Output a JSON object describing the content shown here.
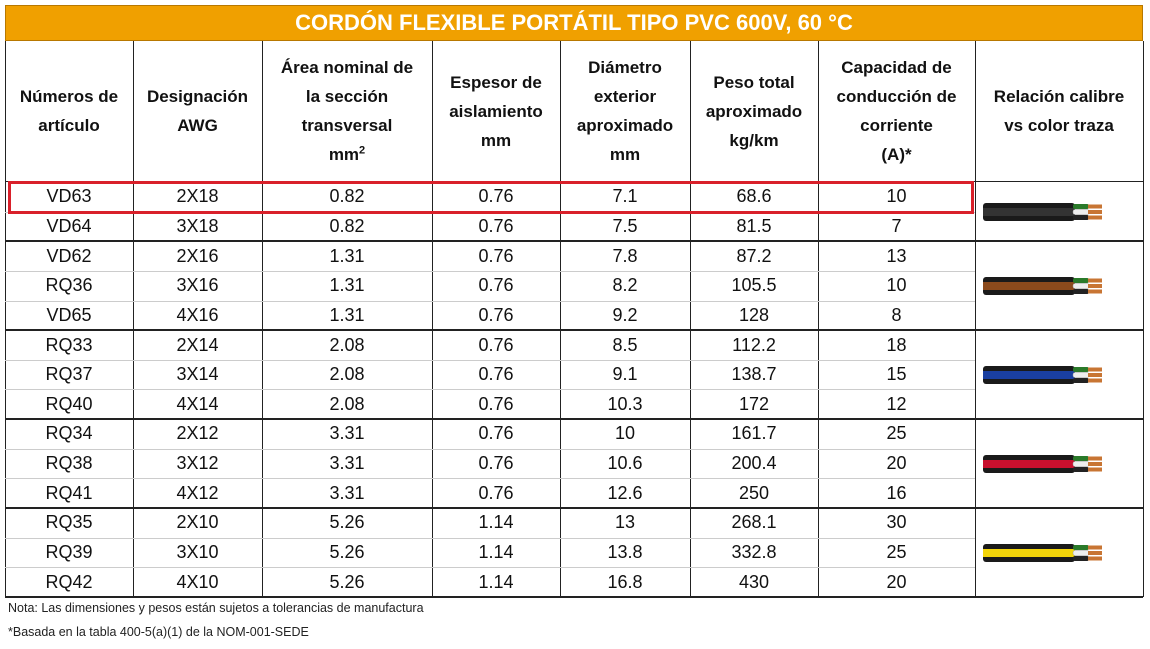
{
  "title": "CORDÓN FLEXIBLE PORTÁTIL TIPO PVC 600V, 60 °C",
  "table": {
    "headers": [
      [
        "Números de",
        "artículo"
      ],
      [
        "Designación",
        "AWG"
      ],
      [
        "Área nominal de",
        "la sección",
        "transversal",
        "mm"
      ],
      [
        "Espesor de",
        "aislamiento",
        "mm"
      ],
      [
        "Diámetro",
        "exterior",
        "aproximado",
        "mm"
      ],
      [
        "Peso total",
        "aproximado",
        "kg/km"
      ],
      [
        "Capacidad de",
        "conducción de",
        "corriente",
        "(A)*"
      ],
      [
        "Relación calibre",
        "vs color traza"
      ]
    ],
    "area_unit_superscript": "2",
    "rows": [
      [
        "VD63",
        "2X18",
        "0.82",
        "0.76",
        "7.1",
        "68.6",
        "10"
      ],
      [
        "VD64",
        "3X18",
        "0.82",
        "0.76",
        "7.5",
        "81.5",
        "7"
      ],
      [
        "VD62",
        "2X16",
        "1.31",
        "0.76",
        "7.8",
        "87.2",
        "13"
      ],
      [
        "RQ36",
        "3X16",
        "1.31",
        "0.76",
        "8.2",
        "105.5",
        "10"
      ],
      [
        "VD65",
        "4X16",
        "1.31",
        "0.76",
        "9.2",
        "128",
        "8"
      ],
      [
        "RQ33",
        "2X14",
        "2.08",
        "0.76",
        "8.5",
        "112.2",
        "18"
      ],
      [
        "RQ37",
        "3X14",
        "2.08",
        "0.76",
        "9.1",
        "138.7",
        "15"
      ],
      [
        "RQ40",
        "4X14",
        "2.08",
        "0.76",
        "10.3",
        "172",
        "12"
      ],
      [
        "RQ34",
        "2X12",
        "3.31",
        "0.76",
        "10",
        "161.7",
        "25"
      ],
      [
        "RQ38",
        "3X12",
        "3.31",
        "0.76",
        "10.6",
        "200.4",
        "20"
      ],
      [
        "RQ41",
        "4X12",
        "3.31",
        "0.76",
        "12.6",
        "250",
        "16"
      ],
      [
        "RQ35",
        "2X10",
        "5.26",
        "1.14",
        "13",
        "268.1",
        "30"
      ],
      [
        "RQ39",
        "3X10",
        "5.26",
        "1.14",
        "13.8",
        "332.8",
        "25"
      ],
      [
        "RQ42",
        "4X10",
        "5.26",
        "1.14",
        "16.8",
        "430",
        "20"
      ]
    ],
    "cable_colors": [
      "#333333",
      "#8b4a1c",
      "#1a3fa0",
      "#c8102e",
      "#f2d40a"
    ]
  },
  "notes": [
    "Nota: Las dimensiones y pesos están sujetos a tolerancias de manufactura",
    "*Basada en la tabla 400-5(a)(1) de la NOM-001-SEDE"
  ]
}
